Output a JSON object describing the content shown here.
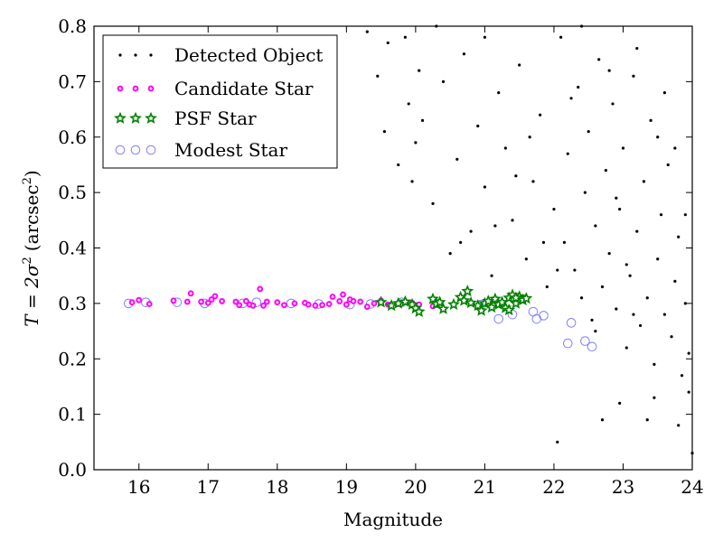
{
  "chart_data": {
    "type": "scatter",
    "xlabel": "Magnitude",
    "ylabel": {
      "main": "T = 2σ",
      "sup": "2",
      "unit": "(arcsec",
      "unit_sup": "2",
      "close": ")"
    },
    "xlim": [
      15.35,
      24.0
    ],
    "ylim": [
      0.0,
      0.8
    ],
    "x_ticks": [
      16,
      17,
      18,
      19,
      20,
      21,
      22,
      23,
      24
    ],
    "y_ticks": [
      0.0,
      0.1,
      0.2,
      0.3,
      0.4,
      0.5,
      0.6,
      0.7,
      0.8
    ],
    "grid": false,
    "legend_position": "top-left",
    "series": [
      {
        "name": "Detected Object",
        "marker": "dot",
        "color": "#000000",
        "points": [
          [
            19.3,
            0.79
          ],
          [
            19.45,
            0.71
          ],
          [
            19.6,
            0.77
          ],
          [
            19.75,
            0.55
          ],
          [
            19.9,
            0.66
          ],
          [
            20.0,
            0.59
          ],
          [
            20.1,
            0.63
          ],
          [
            20.25,
            0.48
          ],
          [
            20.4,
            0.7
          ],
          [
            20.5,
            0.39
          ],
          [
            20.6,
            0.56
          ],
          [
            20.7,
            0.75
          ],
          [
            20.8,
            0.43
          ],
          [
            20.9,
            0.62
          ],
          [
            21.0,
            0.51
          ],
          [
            21.1,
            0.35
          ],
          [
            21.2,
            0.68
          ],
          [
            21.3,
            0.58
          ],
          [
            21.4,
            0.45
          ],
          [
            21.5,
            0.73
          ],
          [
            21.6,
            0.38
          ],
          [
            21.7,
            0.52
          ],
          [
            21.8,
            0.64
          ],
          [
            21.9,
            0.33
          ],
          [
            22.0,
            0.47
          ],
          [
            22.1,
            0.78
          ],
          [
            22.15,
            0.41
          ],
          [
            22.2,
            0.57
          ],
          [
            22.3,
            0.36
          ],
          [
            22.35,
            0.69
          ],
          [
            22.4,
            0.31
          ],
          [
            22.45,
            0.5
          ],
          [
            22.5,
            0.61
          ],
          [
            22.55,
            0.27
          ],
          [
            22.6,
            0.44
          ],
          [
            22.65,
            0.74
          ],
          [
            22.7,
            0.33
          ],
          [
            22.75,
            0.54
          ],
          [
            22.8,
            0.39
          ],
          [
            22.85,
            0.66
          ],
          [
            22.9,
            0.29
          ],
          [
            22.95,
            0.47
          ],
          [
            23.0,
            0.58
          ],
          [
            23.05,
            0.22
          ],
          [
            23.1,
            0.35
          ],
          [
            23.15,
            0.71
          ],
          [
            23.2,
            0.43
          ],
          [
            23.25,
            0.26
          ],
          [
            23.3,
            0.52
          ],
          [
            23.35,
            0.31
          ],
          [
            23.4,
            0.63
          ],
          [
            23.45,
            0.19
          ],
          [
            23.5,
            0.38
          ],
          [
            23.55,
            0.46
          ],
          [
            23.6,
            0.28
          ],
          [
            23.65,
            0.55
          ],
          [
            23.7,
            0.24
          ],
          [
            23.75,
            0.34
          ],
          [
            23.8,
            0.42
          ],
          [
            23.85,
            0.17
          ],
          [
            23.9,
            0.3
          ],
          [
            23.95,
            0.21
          ],
          [
            22.05,
            0.05
          ],
          [
            22.7,
            0.09
          ],
          [
            23.45,
            0.13
          ],
          [
            23.2,
            0.76
          ],
          [
            22.4,
            0.8
          ],
          [
            21.0,
            0.78
          ],
          [
            20.05,
            0.72
          ],
          [
            19.95,
            0.52
          ],
          [
            19.55,
            0.61
          ],
          [
            21.65,
            0.6
          ],
          [
            22.25,
            0.67
          ],
          [
            23.6,
            0.68
          ],
          [
            23.75,
            0.58
          ],
          [
            23.9,
            0.46
          ],
          [
            22.95,
            0.12
          ],
          [
            23.8,
            0.08
          ],
          [
            24.0,
            0.03
          ],
          [
            23.95,
            0.14
          ],
          [
            20.65,
            0.41
          ],
          [
            21.15,
            0.44
          ],
          [
            21.85,
            0.41
          ],
          [
            22.6,
            0.25
          ],
          [
            23.05,
            0.37
          ],
          [
            23.35,
            0.09
          ],
          [
            20.3,
            0.8
          ],
          [
            19.85,
            0.78
          ],
          [
            22.8,
            0.72
          ],
          [
            23.5,
            0.6
          ],
          [
            21.45,
            0.53
          ],
          [
            22.05,
            0.36
          ],
          [
            22.9,
            0.49
          ],
          [
            23.15,
            0.28
          ]
        ]
      },
      {
        "name": "Candidate Star",
        "marker": "small-circle",
        "color": "#ff00ff",
        "points": [
          [
            15.9,
            0.302
          ],
          [
            16.0,
            0.306
          ],
          [
            16.15,
            0.299
          ],
          [
            16.5,
            0.305
          ],
          [
            16.7,
            0.303
          ],
          [
            16.75,
            0.318
          ],
          [
            16.9,
            0.303
          ],
          [
            17.0,
            0.301
          ],
          [
            17.05,
            0.307
          ],
          [
            17.1,
            0.313
          ],
          [
            17.2,
            0.304
          ],
          [
            17.4,
            0.303
          ],
          [
            17.45,
            0.297
          ],
          [
            17.55,
            0.304
          ],
          [
            17.6,
            0.298
          ],
          [
            17.65,
            0.296
          ],
          [
            17.75,
            0.326
          ],
          [
            17.8,
            0.296
          ],
          [
            17.85,
            0.303
          ],
          [
            18.0,
            0.302
          ],
          [
            18.1,
            0.297
          ],
          [
            18.25,
            0.3
          ],
          [
            18.4,
            0.301
          ],
          [
            18.45,
            0.298
          ],
          [
            18.55,
            0.296
          ],
          [
            18.65,
            0.297
          ],
          [
            18.75,
            0.299
          ],
          [
            18.8,
            0.312
          ],
          [
            18.9,
            0.304
          ],
          [
            18.95,
            0.316
          ],
          [
            19.0,
            0.298
          ],
          [
            19.05,
            0.307
          ],
          [
            19.1,
            0.304
          ],
          [
            19.2,
            0.303
          ],
          [
            19.3,
            0.294
          ],
          [
            19.4,
            0.3
          ],
          [
            19.5,
            0.305
          ],
          [
            19.6,
            0.298
          ],
          [
            19.75,
            0.299
          ],
          [
            19.85,
            0.303
          ],
          [
            19.95,
            0.301
          ],
          [
            20.05,
            0.298
          ],
          [
            20.25,
            0.295
          ]
        ]
      },
      {
        "name": "PSF Star",
        "marker": "star",
        "color": "#008000",
        "points": [
          [
            19.5,
            0.302
          ],
          [
            19.65,
            0.296
          ],
          [
            19.75,
            0.3
          ],
          [
            19.85,
            0.303
          ],
          [
            19.95,
            0.298
          ],
          [
            20.0,
            0.291
          ],
          [
            20.05,
            0.285
          ],
          [
            20.25,
            0.308
          ],
          [
            20.3,
            0.299
          ],
          [
            20.35,
            0.302
          ],
          [
            20.4,
            0.29
          ],
          [
            20.55,
            0.298
          ],
          [
            20.65,
            0.311
          ],
          [
            20.7,
            0.305
          ],
          [
            20.75,
            0.322
          ],
          [
            20.8,
            0.301
          ],
          [
            20.9,
            0.296
          ],
          [
            20.95,
            0.287
          ],
          [
            21.0,
            0.3
          ],
          [
            21.05,
            0.304
          ],
          [
            21.1,
            0.293
          ],
          [
            21.15,
            0.308
          ],
          [
            21.2,
            0.298
          ],
          [
            21.25,
            0.302
          ],
          [
            21.3,
            0.292
          ],
          [
            21.35,
            0.31
          ],
          [
            21.4,
            0.315
          ],
          [
            21.45,
            0.3
          ],
          [
            21.5,
            0.312
          ],
          [
            21.55,
            0.306
          ],
          [
            21.6,
            0.309
          ],
          [
            21.35,
            0.288
          ],
          [
            21.45,
            0.31
          ]
        ]
      },
      {
        "name": "Modest Star",
        "marker": "open-circle",
        "color": "#8080ff",
        "points": [
          [
            15.85,
            0.3
          ],
          [
            16.1,
            0.302
          ],
          [
            16.55,
            0.302
          ],
          [
            16.95,
            0.3
          ],
          [
            17.5,
            0.3
          ],
          [
            17.7,
            0.302
          ],
          [
            18.2,
            0.3
          ],
          [
            18.6,
            0.299
          ],
          [
            19.05,
            0.298
          ],
          [
            19.35,
            0.299
          ],
          [
            19.8,
            0.302
          ],
          [
            20.3,
            0.3
          ],
          [
            20.95,
            0.298
          ],
          [
            21.2,
            0.272
          ],
          [
            21.4,
            0.28
          ],
          [
            21.7,
            0.285
          ],
          [
            21.75,
            0.272
          ],
          [
            21.85,
            0.278
          ],
          [
            22.2,
            0.228
          ],
          [
            22.25,
            0.265
          ],
          [
            22.45,
            0.232
          ],
          [
            22.55,
            0.222
          ]
        ]
      }
    ]
  }
}
